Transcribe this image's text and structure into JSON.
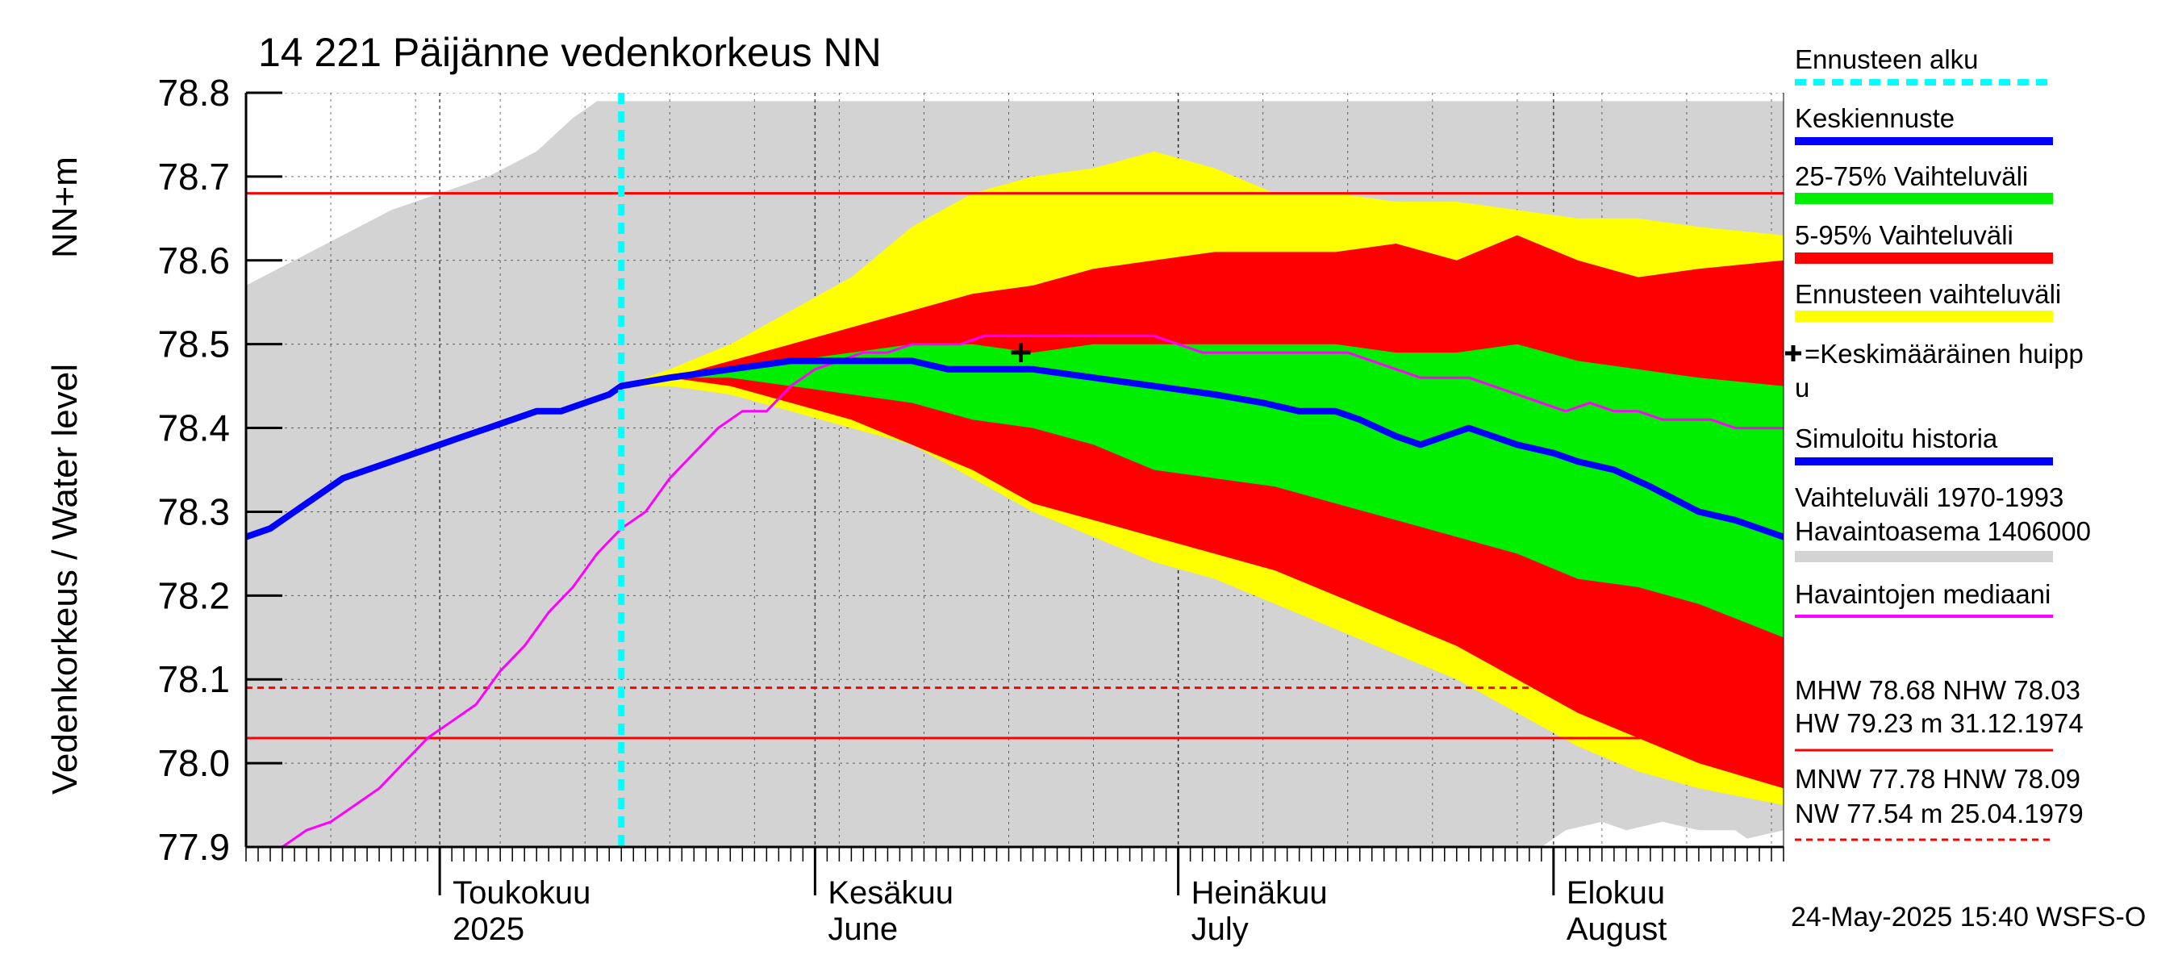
{
  "chart_data": {
    "type": "area",
    "title": "14 221 Päijänne vedenkorkeus NN",
    "ylabel_main": "Vedenkorkeus / Water level",
    "ylabel_unit": "NN+m",
    "footer": "24-May-2025 15:40 WSFS-O",
    "ylim": [
      77.9,
      78.8
    ],
    "y_ticks": [
      "78.8",
      "78.7",
      "78.6",
      "78.5",
      "78.4",
      "78.3",
      "78.2",
      "78.1",
      "78.0",
      "77.9"
    ],
    "y_tick_values": [
      78.8,
      78.7,
      78.6,
      78.5,
      78.4,
      78.3,
      78.2,
      78.1,
      78.0,
      77.9
    ],
    "x_range_days": [
      0,
      127
    ],
    "x_unit": "days",
    "x_start": "2025-04-15",
    "month_labels": [
      {
        "fi": "Toukokuu",
        "en": "2025",
        "day": 16
      },
      {
        "fi": "Kesäkuu",
        "en": "June",
        "day": 47
      },
      {
        "fi": "Heinäkuu",
        "en": "July",
        "day": 77
      },
      {
        "fi": "Elokuu",
        "en": "August",
        "day": 108
      }
    ],
    "month_boundaries": [
      16,
      47,
      77,
      108
    ],
    "week_grid": [
      7,
      14,
      21,
      28,
      35,
      42,
      49,
      56,
      63,
      70,
      77,
      84,
      91,
      98,
      105,
      112,
      119,
      126
    ],
    "forecast_start_day": 31,
    "reference_lines": [
      {
        "name": "MHW",
        "value": 78.68,
        "style": "solid",
        "color": "#ff0000"
      },
      {
        "name": "HNW",
        "value": 78.09,
        "style": "dashed",
        "color": "#ff0000"
      },
      {
        "name": "NHW",
        "value": 78.03,
        "style": "solid",
        "color": "#ff0000"
      }
    ],
    "peak_marker": {
      "day": 64,
      "value": 78.49
    },
    "bands": {
      "hist_range": {
        "color": "#d3d3d3",
        "upper": [
          [
            0,
            78.57
          ],
          [
            4,
            78.6
          ],
          [
            8,
            78.63
          ],
          [
            12,
            78.66
          ],
          [
            16,
            78.68
          ],
          [
            20,
            78.7
          ],
          [
            24,
            78.73
          ],
          [
            27,
            78.77
          ],
          [
            29,
            78.79
          ],
          [
            127,
            78.79
          ]
        ],
        "lower": [
          [
            0,
            77.9
          ],
          [
            107,
            77.9
          ],
          [
            109,
            77.92
          ],
          [
            112,
            77.93
          ],
          [
            114,
            77.92
          ],
          [
            117,
            77.93
          ],
          [
            120,
            77.92
          ],
          [
            123,
            77.92
          ],
          [
            124,
            77.91
          ],
          [
            127,
            77.92
          ]
        ]
      },
      "forecast_range": {
        "color": "#ffff00",
        "upper": [
          [
            31,
            78.45
          ],
          [
            35,
            78.47
          ],
          [
            40,
            78.5
          ],
          [
            45,
            78.54
          ],
          [
            50,
            78.58
          ],
          [
            55,
            78.64
          ],
          [
            60,
            78.68
          ],
          [
            65,
            78.7
          ],
          [
            70,
            78.71
          ],
          [
            75,
            78.73
          ],
          [
            80,
            78.71
          ],
          [
            85,
            78.68
          ],
          [
            90,
            78.68
          ],
          [
            95,
            78.67
          ],
          [
            100,
            78.67
          ],
          [
            105,
            78.66
          ],
          [
            110,
            78.65
          ],
          [
            115,
            78.65
          ],
          [
            120,
            78.64
          ],
          [
            127,
            78.63
          ]
        ],
        "lower": [
          [
            31,
            78.45
          ],
          [
            35,
            78.45
          ],
          [
            40,
            78.44
          ],
          [
            45,
            78.42
          ],
          [
            50,
            78.4
          ],
          [
            55,
            78.38
          ],
          [
            60,
            78.34
          ],
          [
            65,
            78.3
          ],
          [
            70,
            78.27
          ],
          [
            75,
            78.24
          ],
          [
            80,
            78.22
          ],
          [
            85,
            78.19
          ],
          [
            90,
            78.16
          ],
          [
            95,
            78.13
          ],
          [
            100,
            78.1
          ],
          [
            105,
            78.06
          ],
          [
            110,
            78.02
          ],
          [
            115,
            77.99
          ],
          [
            120,
            77.97
          ],
          [
            127,
            77.95
          ]
        ]
      },
      "p5_95": {
        "color": "#ff0000",
        "upper": [
          [
            31,
            78.45
          ],
          [
            35,
            78.46
          ],
          [
            40,
            78.48
          ],
          [
            45,
            78.5
          ],
          [
            50,
            78.52
          ],
          [
            55,
            78.54
          ],
          [
            60,
            78.56
          ],
          [
            65,
            78.57
          ],
          [
            70,
            78.59
          ],
          [
            75,
            78.6
          ],
          [
            80,
            78.61
          ],
          [
            85,
            78.61
          ],
          [
            90,
            78.61
          ],
          [
            95,
            78.62
          ],
          [
            100,
            78.6
          ],
          [
            105,
            78.63
          ],
          [
            110,
            78.6
          ],
          [
            115,
            78.58
          ],
          [
            120,
            78.59
          ],
          [
            127,
            78.6
          ]
        ],
        "lower": [
          [
            31,
            78.45
          ],
          [
            35,
            78.46
          ],
          [
            40,
            78.45
          ],
          [
            45,
            78.43
          ],
          [
            50,
            78.41
          ],
          [
            55,
            78.38
          ],
          [
            60,
            78.35
          ],
          [
            65,
            78.31
          ],
          [
            70,
            78.29
          ],
          [
            75,
            78.27
          ],
          [
            80,
            78.25
          ],
          [
            85,
            78.23
          ],
          [
            90,
            78.2
          ],
          [
            95,
            78.17
          ],
          [
            100,
            78.14
          ],
          [
            105,
            78.1
          ],
          [
            110,
            78.06
          ],
          [
            115,
            78.03
          ],
          [
            120,
            78.0
          ],
          [
            127,
            77.97
          ]
        ]
      },
      "p25_75": {
        "color": "#00ee00",
        "upper": [
          [
            31,
            78.45
          ],
          [
            35,
            78.46
          ],
          [
            40,
            78.47
          ],
          [
            45,
            78.48
          ],
          [
            50,
            78.49
          ],
          [
            55,
            78.5
          ],
          [
            60,
            78.5
          ],
          [
            65,
            78.49
          ],
          [
            70,
            78.5
          ],
          [
            75,
            78.5
          ],
          [
            80,
            78.5
          ],
          [
            85,
            78.5
          ],
          [
            90,
            78.5
          ],
          [
            95,
            78.49
          ],
          [
            100,
            78.49
          ],
          [
            105,
            78.5
          ],
          [
            110,
            78.48
          ],
          [
            115,
            78.47
          ],
          [
            120,
            78.46
          ],
          [
            127,
            78.45
          ]
        ],
        "lower": [
          [
            31,
            78.45
          ],
          [
            35,
            78.46
          ],
          [
            40,
            78.46
          ],
          [
            45,
            78.45
          ],
          [
            50,
            78.44
          ],
          [
            55,
            78.43
          ],
          [
            60,
            78.41
          ],
          [
            65,
            78.4
          ],
          [
            70,
            78.38
          ],
          [
            75,
            78.35
          ],
          [
            80,
            78.34
          ],
          [
            85,
            78.33
          ],
          [
            90,
            78.31
          ],
          [
            95,
            78.29
          ],
          [
            100,
            78.27
          ],
          [
            105,
            78.25
          ],
          [
            110,
            78.22
          ],
          [
            115,
            78.21
          ],
          [
            120,
            78.19
          ],
          [
            127,
            78.15
          ]
        ]
      }
    },
    "series": [
      {
        "name": "Havaintojen mediaani",
        "color": "#ff00ff",
        "width": 3,
        "points": [
          [
            3,
            77.9
          ],
          [
            5,
            77.92
          ],
          [
            7,
            77.93
          ],
          [
            9,
            77.95
          ],
          [
            11,
            77.97
          ],
          [
            13,
            78.0
          ],
          [
            15,
            78.03
          ],
          [
            17,
            78.05
          ],
          [
            19,
            78.07
          ],
          [
            21,
            78.11
          ],
          [
            23,
            78.14
          ],
          [
            25,
            78.18
          ],
          [
            27,
            78.21
          ],
          [
            29,
            78.25
          ],
          [
            31,
            78.28
          ],
          [
            33,
            78.3
          ],
          [
            35,
            78.34
          ],
          [
            37,
            78.37
          ],
          [
            39,
            78.4
          ],
          [
            41,
            78.42
          ],
          [
            43,
            78.42
          ],
          [
            45,
            78.45
          ],
          [
            47,
            78.47
          ],
          [
            49,
            78.48
          ],
          [
            51,
            78.49
          ],
          [
            53,
            78.49
          ],
          [
            55,
            78.5
          ],
          [
            57,
            78.5
          ],
          [
            59,
            78.5
          ],
          [
            61,
            78.51
          ],
          [
            63,
            78.51
          ],
          [
            65,
            78.51
          ],
          [
            67,
            78.51
          ],
          [
            69,
            78.51
          ],
          [
            71,
            78.51
          ],
          [
            73,
            78.51
          ],
          [
            75,
            78.51
          ],
          [
            77,
            78.5
          ],
          [
            79,
            78.49
          ],
          [
            81,
            78.49
          ],
          [
            83,
            78.49
          ],
          [
            85,
            78.49
          ],
          [
            87,
            78.49
          ],
          [
            89,
            78.49
          ],
          [
            91,
            78.49
          ],
          [
            93,
            78.48
          ],
          [
            95,
            78.47
          ],
          [
            97,
            78.46
          ],
          [
            99,
            78.46
          ],
          [
            101,
            78.46
          ],
          [
            103,
            78.45
          ],
          [
            105,
            78.44
          ],
          [
            107,
            78.43
          ],
          [
            109,
            78.42
          ],
          [
            111,
            78.43
          ],
          [
            113,
            78.42
          ],
          [
            115,
            78.42
          ],
          [
            117,
            78.41
          ],
          [
            119,
            78.41
          ],
          [
            121,
            78.41
          ],
          [
            123,
            78.4
          ],
          [
            125,
            78.4
          ],
          [
            127,
            78.4
          ]
        ]
      },
      {
        "name": "Simuloitu historia",
        "color": "#0000ff",
        "width": 8,
        "points": [
          [
            0,
            78.27
          ],
          [
            2,
            78.28
          ],
          [
            4,
            78.3
          ],
          [
            6,
            78.32
          ],
          [
            8,
            78.34
          ],
          [
            10,
            78.35
          ],
          [
            12,
            78.36
          ],
          [
            14,
            78.37
          ],
          [
            16,
            78.38
          ],
          [
            18,
            78.39
          ],
          [
            20,
            78.4
          ],
          [
            22,
            78.41
          ],
          [
            24,
            78.42
          ],
          [
            26,
            78.42
          ],
          [
            28,
            78.43
          ],
          [
            30,
            78.44
          ],
          [
            31,
            78.45
          ]
        ]
      },
      {
        "name": "Keskiennuste",
        "color": "#0000ff",
        "width": 8,
        "points": [
          [
            31,
            78.45
          ],
          [
            35,
            78.46
          ],
          [
            40,
            78.47
          ],
          [
            45,
            78.48
          ],
          [
            50,
            78.48
          ],
          [
            55,
            78.48
          ],
          [
            58,
            78.47
          ],
          [
            62,
            78.47
          ],
          [
            65,
            78.47
          ],
          [
            70,
            78.46
          ],
          [
            75,
            78.45
          ],
          [
            80,
            78.44
          ],
          [
            84,
            78.43
          ],
          [
            87,
            78.42
          ],
          [
            90,
            78.42
          ],
          [
            92,
            78.41
          ],
          [
            95,
            78.39
          ],
          [
            97,
            78.38
          ],
          [
            99,
            78.39
          ],
          [
            101,
            78.4
          ],
          [
            103,
            78.39
          ],
          [
            105,
            78.38
          ],
          [
            108,
            78.37
          ],
          [
            110,
            78.36
          ],
          [
            113,
            78.35
          ],
          [
            116,
            78.33
          ],
          [
            120,
            78.3
          ],
          [
            123,
            78.29
          ],
          [
            127,
            78.27
          ]
        ]
      }
    ],
    "legend": [
      {
        "label": "Ennusteen alku",
        "color": "#00ffff",
        "style": "dashed"
      },
      {
        "label": "Keskiennuste",
        "color": "#0000ff",
        "style": "thick"
      },
      {
        "label": "25-75% Vaihteluväli",
        "color": "#00ee00",
        "style": "band"
      },
      {
        "label": "5-95% Vaihteluväli",
        "color": "#ff0000",
        "style": "band"
      },
      {
        "label": "Ennusteen vaihteluväli",
        "color": "#ffff00",
        "style": "band"
      },
      {
        "label": "=Keskimääräinen huipp",
        "label2": "u",
        "style": "cross"
      },
      {
        "label": "Simuloitu historia",
        "color": "#0000ff",
        "style": "thick"
      },
      {
        "label": "Vaihteluväli 1970-1993",
        "label2": " Havaintoasema 1406000",
        "color": "#d3d3d3",
        "style": "band"
      },
      {
        "label": "Havaintojen mediaani",
        "color": "#ff00ff",
        "style": "line"
      }
    ],
    "stats": {
      "block1_line1": "MHW  78.68 NHW  78.03",
      "block1_line2": "HW  79.23 m 31.12.1974",
      "block2_line1": "MNW  77.78 HNW  78.09",
      "block2_line2": "NW  77.54 m 25.04.1979"
    }
  }
}
